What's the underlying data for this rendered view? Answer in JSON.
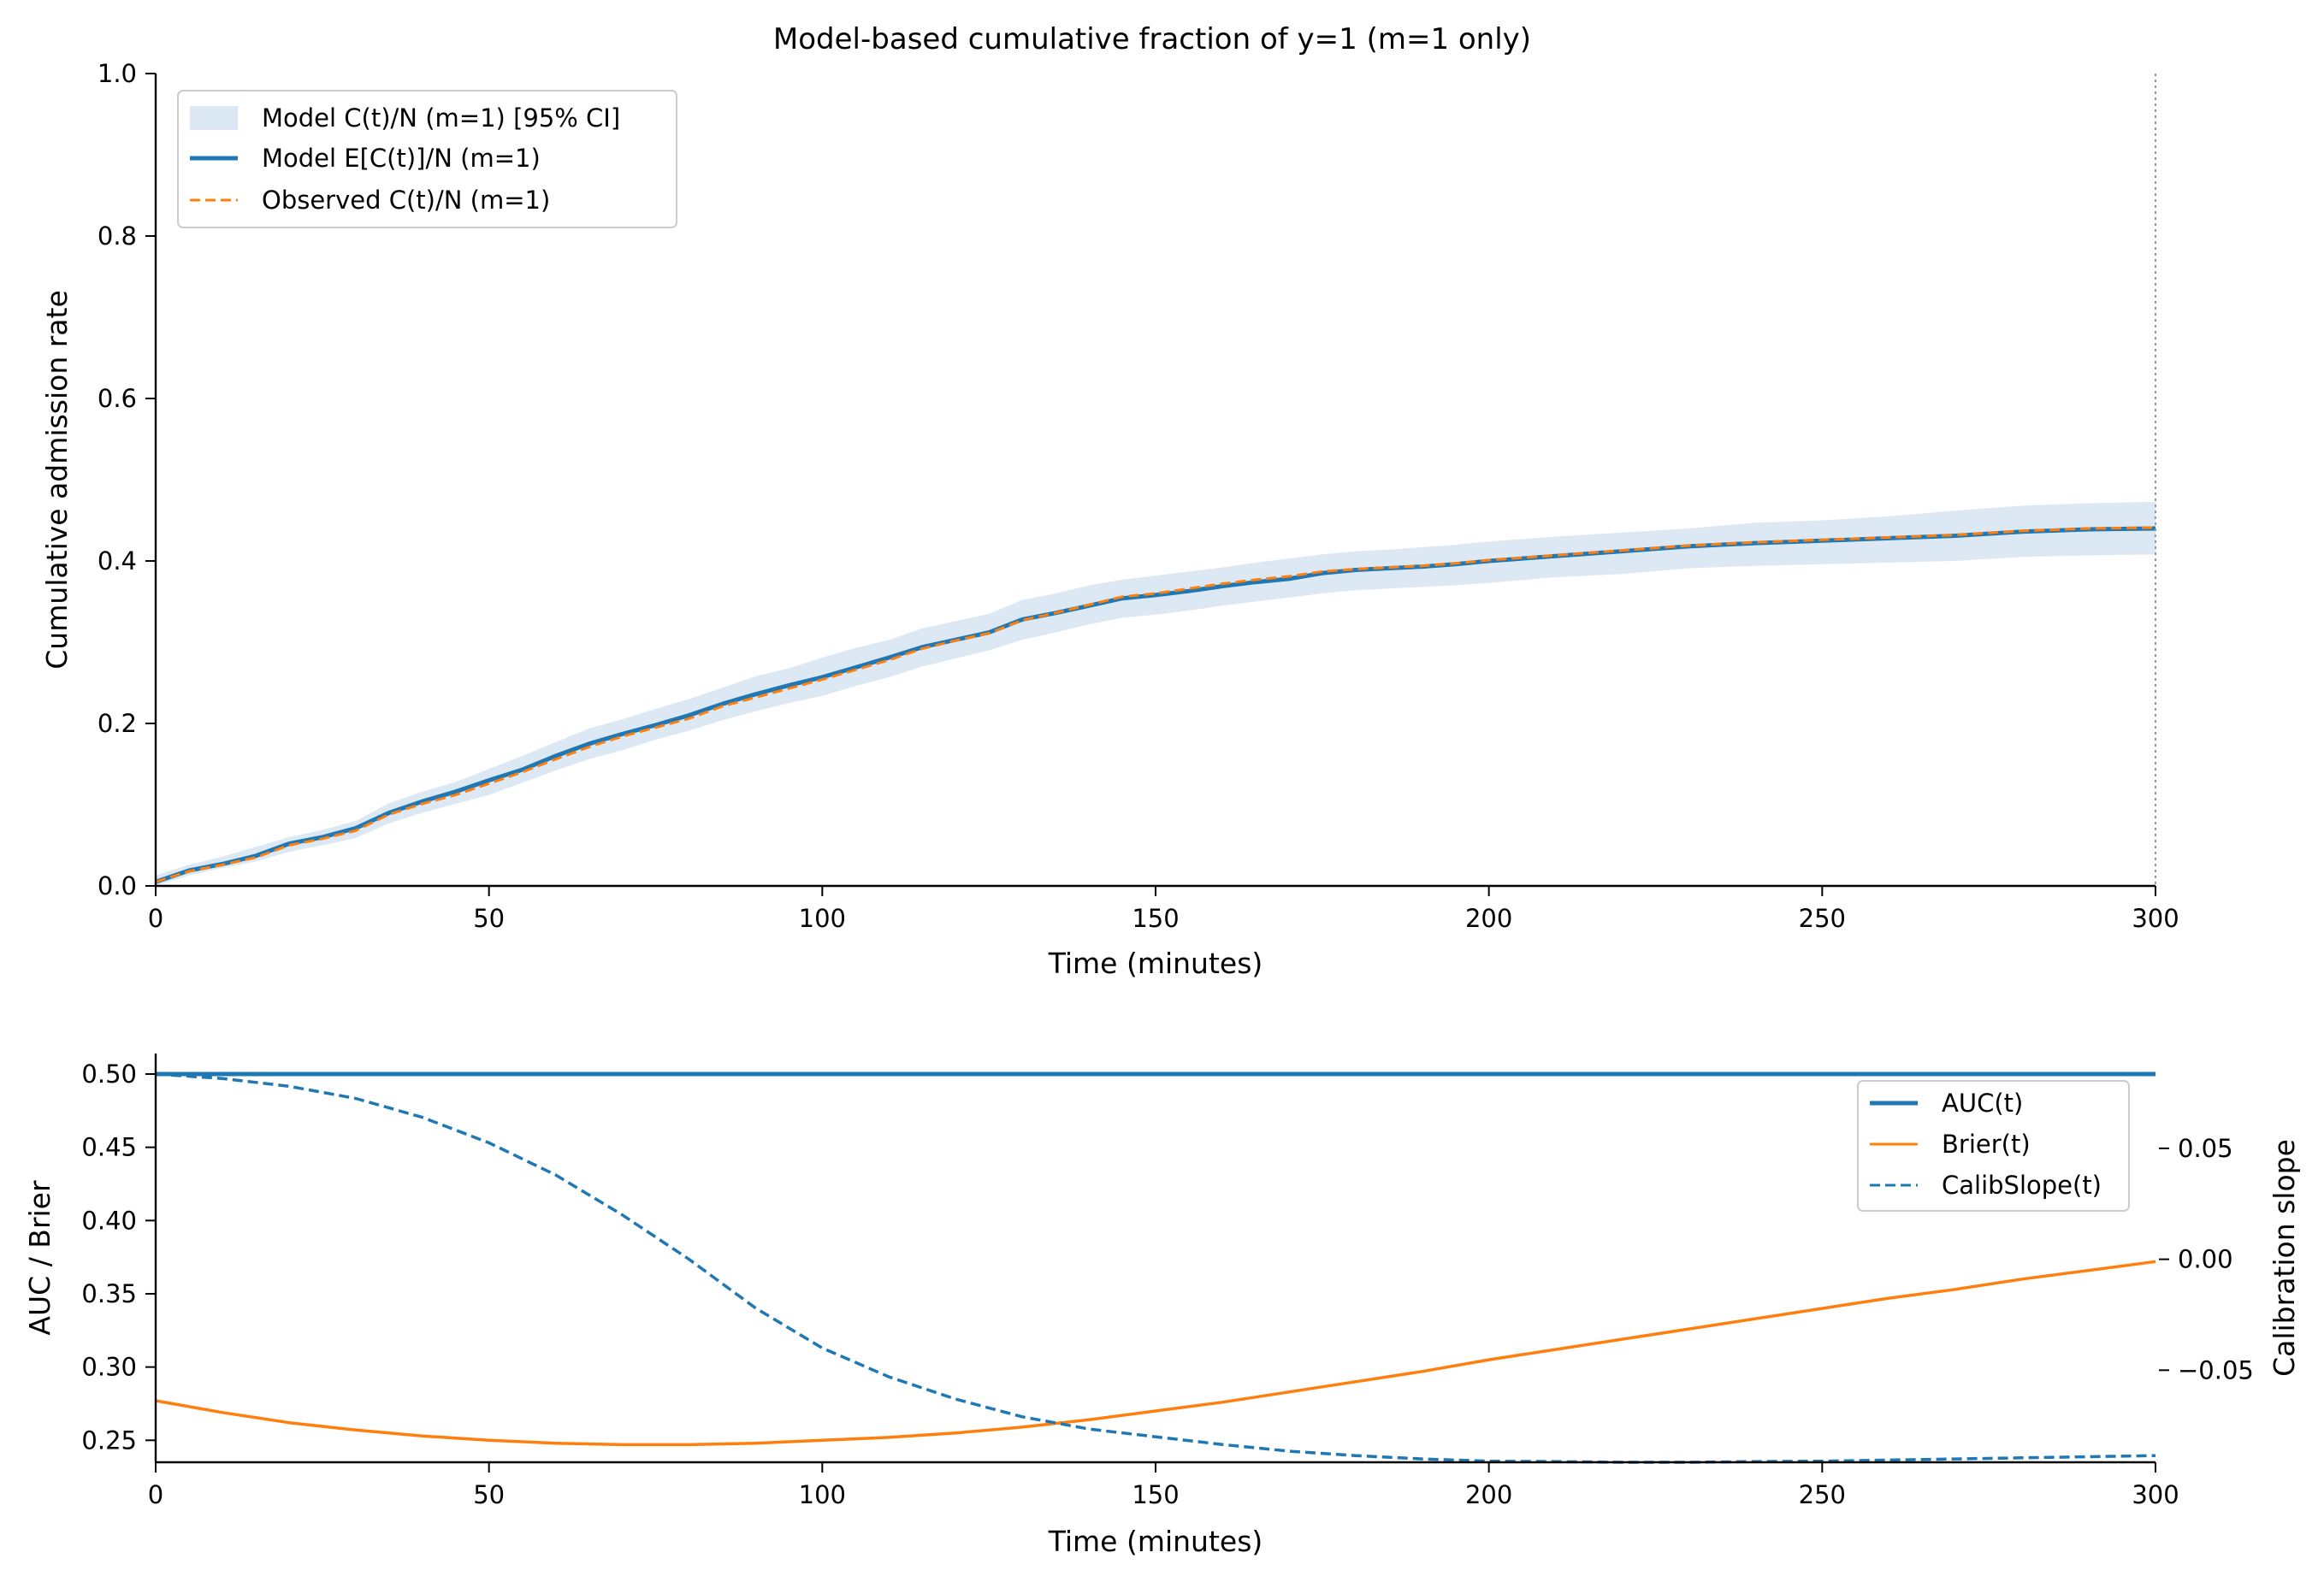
{
  "chart_data": [
    {
      "type": "line",
      "title": "Model-based cumulative fraction of y=1 (m=1 only)",
      "xlabel": "Time (minutes)",
      "ylabel": "Cumulative admission rate",
      "xlim": [
        0,
        300
      ],
      "ylim": [
        0,
        1.0
      ],
      "xticks": [
        "0",
        "50",
        "100",
        "150",
        "200",
        "250",
        "300"
      ],
      "yticks": [
        "0.0",
        "0.2",
        "0.4",
        "0.6",
        "0.8",
        "1.0"
      ],
      "grid": false,
      "legend_position": "top-left",
      "reference_line": {
        "x": 300,
        "style": "dotted",
        "color": "#999999"
      },
      "x": [
        0,
        5,
        10,
        15,
        20,
        25,
        30,
        35,
        40,
        45,
        50,
        55,
        60,
        65,
        70,
        75,
        80,
        85,
        90,
        95,
        100,
        105,
        110,
        115,
        120,
        125,
        130,
        135,
        140,
        145,
        150,
        155,
        160,
        165,
        170,
        175,
        180,
        185,
        190,
        195,
        200,
        210,
        220,
        230,
        240,
        250,
        260,
        270,
        280,
        290,
        300
      ],
      "series": [
        {
          "name": "Model C(t)/N (m=1) [95% CI]",
          "kind": "band",
          "color": "#dce9f4",
          "lower": [
            0.0,
            0.013,
            0.022,
            0.03,
            0.042,
            0.05,
            0.059,
            0.077,
            0.09,
            0.101,
            0.112,
            0.127,
            0.142,
            0.156,
            0.167,
            0.18,
            0.191,
            0.204,
            0.215,
            0.225,
            0.234,
            0.246,
            0.257,
            0.27,
            0.28,
            0.29,
            0.303,
            0.312,
            0.322,
            0.33,
            0.334,
            0.339,
            0.345,
            0.35,
            0.355,
            0.36,
            0.364,
            0.366,
            0.368,
            0.37,
            0.373,
            0.38,
            0.384,
            0.391,
            0.394,
            0.396,
            0.398,
            0.4,
            0.405,
            0.407,
            0.408
          ],
          "upper": [
            0.013,
            0.026,
            0.036,
            0.048,
            0.06,
            0.069,
            0.08,
            0.102,
            0.116,
            0.128,
            0.144,
            0.16,
            0.177,
            0.194,
            0.205,
            0.218,
            0.23,
            0.244,
            0.258,
            0.268,
            0.281,
            0.293,
            0.303,
            0.317,
            0.326,
            0.335,
            0.352,
            0.36,
            0.37,
            0.377,
            0.382,
            0.387,
            0.392,
            0.398,
            0.403,
            0.408,
            0.412,
            0.414,
            0.417,
            0.42,
            0.424,
            0.43,
            0.435,
            0.44,
            0.447,
            0.45,
            0.455,
            0.462,
            0.468,
            0.471,
            0.473
          ]
        },
        {
          "name": "Model E[C(t)]/N (m=1)",
          "kind": "line",
          "style": "solid",
          "color": "#1f77b4",
          "values": [
            0.005,
            0.019,
            0.027,
            0.037,
            0.052,
            0.06,
            0.071,
            0.09,
            0.104,
            0.116,
            0.13,
            0.143,
            0.16,
            0.175,
            0.187,
            0.198,
            0.21,
            0.224,
            0.236,
            0.247,
            0.257,
            0.269,
            0.281,
            0.294,
            0.303,
            0.312,
            0.328,
            0.336,
            0.345,
            0.354,
            0.358,
            0.363,
            0.369,
            0.374,
            0.378,
            0.385,
            0.389,
            0.391,
            0.393,
            0.396,
            0.4,
            0.406,
            0.412,
            0.418,
            0.422,
            0.425,
            0.428,
            0.431,
            0.436,
            0.439,
            0.44
          ]
        },
        {
          "name": "Observed C(t)/N (m=1)",
          "kind": "line",
          "style": "dashed",
          "color": "#ff7f0e",
          "values": [
            0.005,
            0.018,
            0.026,
            0.035,
            0.05,
            0.058,
            0.068,
            0.088,
            0.101,
            0.112,
            0.126,
            0.14,
            0.156,
            0.171,
            0.184,
            0.195,
            0.206,
            0.221,
            0.232,
            0.243,
            0.254,
            0.266,
            0.278,
            0.292,
            0.302,
            0.311,
            0.327,
            0.336,
            0.346,
            0.356,
            0.36,
            0.366,
            0.372,
            0.377,
            0.381,
            0.387,
            0.39,
            0.392,
            0.394,
            0.397,
            0.401,
            0.407,
            0.413,
            0.419,
            0.423,
            0.426,
            0.429,
            0.432,
            0.437,
            0.44,
            0.441
          ]
        }
      ]
    },
    {
      "type": "line",
      "title": "",
      "xlabel": "Time (minutes)",
      "ylabel": "AUC / Brier",
      "y2label": "Calibration slope",
      "xlim": [
        0,
        300
      ],
      "ylim": [
        0.235,
        0.5
      ],
      "y2lim": [
        -0.0915,
        0.0835
      ],
      "xticks": [
        "0",
        "50",
        "100",
        "150",
        "200",
        "250",
        "300"
      ],
      "yticks": [
        "0.25",
        "0.30",
        "0.35",
        "0.40",
        "0.45",
        "0.50"
      ],
      "y2ticks": [
        "−0.05",
        "0.00",
        "0.05"
      ],
      "grid": false,
      "legend_position": "top-right",
      "x": [
        0,
        10,
        20,
        30,
        40,
        50,
        60,
        70,
        80,
        90,
        100,
        110,
        120,
        130,
        140,
        150,
        160,
        170,
        180,
        190,
        200,
        210,
        220,
        230,
        240,
        250,
        260,
        270,
        280,
        290,
        300
      ],
      "series": [
        {
          "name": "AUC(t)",
          "axis": "left",
          "style": "solid",
          "color": "#1f77b4",
          "values": [
            0.5,
            0.5,
            0.5,
            0.5,
            0.5,
            0.5,
            0.5,
            0.5,
            0.5,
            0.5,
            0.5,
            0.5,
            0.5,
            0.5,
            0.5,
            0.5,
            0.5,
            0.5,
            0.5,
            0.5,
            0.5,
            0.5,
            0.5,
            0.5,
            0.5,
            0.5,
            0.5,
            0.5,
            0.5,
            0.5,
            0.5
          ]
        },
        {
          "name": "Brier(t)",
          "axis": "left",
          "style": "solid",
          "color": "#ff7f0e",
          "values": [
            0.277,
            0.269,
            0.262,
            0.257,
            0.253,
            0.25,
            0.248,
            0.247,
            0.247,
            0.248,
            0.25,
            0.252,
            0.255,
            0.259,
            0.264,
            0.27,
            0.276,
            0.283,
            0.29,
            0.297,
            0.305,
            0.312,
            0.319,
            0.326,
            0.333,
            0.34,
            0.347,
            0.353,
            0.36,
            0.366,
            0.372
          ]
        },
        {
          "name": "CalibSlope(t)",
          "axis": "right",
          "style": "dashed",
          "color": "#1f77b4",
          "values": [
            0.0835,
            0.0815,
            0.078,
            0.0725,
            0.064,
            0.0525,
            0.038,
            0.02,
            0.0,
            -0.022,
            -0.04,
            -0.053,
            -0.063,
            -0.071,
            -0.0765,
            -0.08,
            -0.0835,
            -0.0865,
            -0.0885,
            -0.09,
            -0.091,
            -0.0912,
            -0.0915,
            -0.0915,
            -0.0912,
            -0.091,
            -0.0905,
            -0.09,
            -0.0895,
            -0.089,
            -0.0885
          ]
        }
      ]
    }
  ]
}
